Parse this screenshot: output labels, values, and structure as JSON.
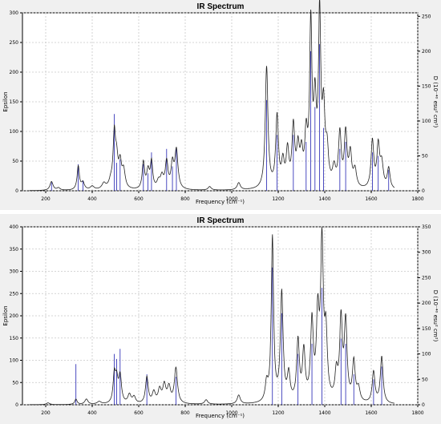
{
  "chart_data": [
    {
      "type": "line",
      "title": "IR Spectrum",
      "xlabel": "Frequency (cm⁻¹)",
      "ylabel": "Epsilon",
      "y2label": "D (10⁻⁴⁰ esu² cm²)",
      "xlim": [
        100,
        1800
      ],
      "ylim": [
        0,
        300
      ],
      "y2lim": [
        0,
        255
      ],
      "x_ticks": [
        200,
        400,
        600,
        800,
        1000,
        1200,
        1400,
        1600,
        1800
      ],
      "y_ticks": [
        0,
        50,
        100,
        150,
        200,
        250,
        300
      ],
      "y2_ticks": [
        0,
        50,
        100,
        150,
        200,
        250
      ],
      "grid": true,
      "colors": {
        "spectrum": "#222222",
        "sticks": "#2020b0",
        "grid": "#c8c8c8"
      },
      "peaks": [
        [
          225,
          15,
          8
        ],
        [
          255,
          4,
          8
        ],
        [
          340,
          40,
          6
        ],
        [
          360,
          12,
          8
        ],
        [
          400,
          6,
          10
        ],
        [
          450,
          10,
          10
        ],
        [
          480,
          12,
          10
        ],
        [
          495,
          87,
          6
        ],
        [
          505,
          45,
          7
        ],
        [
          520,
          40,
          7
        ],
        [
          535,
          30,
          8
        ],
        [
          620,
          45,
          6
        ],
        [
          640,
          30,
          7
        ],
        [
          655,
          45,
          6
        ],
        [
          685,
          12,
          8
        ],
        [
          700,
          20,
          8
        ],
        [
          720,
          45,
          7
        ],
        [
          745,
          40,
          7
        ],
        [
          762,
          65,
          8
        ],
        [
          905,
          6,
          8
        ],
        [
          1030,
          12,
          8
        ],
        [
          1150,
          205,
          7
        ],
        [
          1195,
          120,
          7
        ],
        [
          1220,
          40,
          7
        ],
        [
          1240,
          60,
          7
        ],
        [
          1265,
          100,
          7
        ],
        [
          1285,
          60,
          7
        ],
        [
          1300,
          50,
          7
        ],
        [
          1320,
          80,
          7
        ],
        [
          1340,
          265,
          6
        ],
        [
          1358,
          130,
          7
        ],
        [
          1378,
          280,
          6
        ],
        [
          1395,
          120,
          7
        ],
        [
          1410,
          55,
          7
        ],
        [
          1440,
          30,
          8
        ],
        [
          1465,
          90,
          7
        ],
        [
          1490,
          90,
          7
        ],
        [
          1510,
          55,
          7
        ],
        [
          1530,
          30,
          8
        ],
        [
          1605,
          80,
          7
        ],
        [
          1630,
          70,
          7
        ],
        [
          1645,
          40,
          8
        ],
        [
          1675,
          35,
          7
        ]
      ],
      "sticks": [
        [
          225,
          12
        ],
        [
          340,
          38
        ],
        [
          360,
          15
        ],
        [
          495,
          110
        ],
        [
          505,
          40
        ],
        [
          520,
          45
        ],
        [
          620,
          38
        ],
        [
          640,
          25
        ],
        [
          655,
          55
        ],
        [
          720,
          60
        ],
        [
          745,
          35
        ],
        [
          762,
          60
        ],
        [
          1150,
          130
        ],
        [
          1195,
          80
        ],
        [
          1265,
          80
        ],
        [
          1320,
          70
        ],
        [
          1340,
          200
        ],
        [
          1358,
          120
        ],
        [
          1378,
          210
        ],
        [
          1395,
          90
        ],
        [
          1465,
          60
        ],
        [
          1490,
          70
        ],
        [
          1605,
          55
        ],
        [
          1630,
          50
        ],
        [
          1675,
          30
        ]
      ]
    },
    {
      "type": "line",
      "title": "IR Spectrum",
      "xlabel": "Frequency (cm⁻¹)",
      "ylabel": "Epsilon",
      "y2label": "D (10⁻⁴⁰ esu² cm²)",
      "xlim": [
        100,
        1800
      ],
      "ylim": [
        0,
        400
      ],
      "y2lim": [
        0,
        350
      ],
      "x_ticks": [
        200,
        400,
        600,
        800,
        1000,
        1200,
        1400,
        1600,
        1800
      ],
      "y_ticks": [
        0,
        50,
        100,
        150,
        200,
        250,
        300,
        350,
        400
      ],
      "y2_ticks": [
        0,
        50,
        100,
        150,
        200,
        250,
        300,
        350
      ],
      "grid": true,
      "colors": {
        "spectrum": "#222222",
        "sticks": "#2020b0",
        "grid": "#c8c8c8"
      },
      "peaks": [
        [
          210,
          4,
          8
        ],
        [
          330,
          12,
          6
        ],
        [
          375,
          12,
          8
        ],
        [
          430,
          6,
          10
        ],
        [
          495,
          60,
          6
        ],
        [
          505,
          50,
          7
        ],
        [
          520,
          60,
          7
        ],
        [
          560,
          20,
          8
        ],
        [
          580,
          15,
          8
        ],
        [
          635,
          60,
          7
        ],
        [
          665,
          25,
          8
        ],
        [
          690,
          30,
          8
        ],
        [
          710,
          40,
          8
        ],
        [
          730,
          35,
          8
        ],
        [
          760,
          80,
          8
        ],
        [
          890,
          10,
          8
        ],
        [
          1030,
          20,
          8
        ],
        [
          1150,
          40,
          7
        ],
        [
          1175,
          370,
          6
        ],
        [
          1215,
          245,
          7
        ],
        [
          1245,
          60,
          7
        ],
        [
          1285,
          135,
          7
        ],
        [
          1310,
          110,
          7
        ],
        [
          1345,
          175,
          7
        ],
        [
          1370,
          180,
          7
        ],
        [
          1388,
          345,
          7
        ],
        [
          1405,
          140,
          7
        ],
        [
          1450,
          60,
          7
        ],
        [
          1470,
          180,
          7
        ],
        [
          1490,
          175,
          7
        ],
        [
          1525,
          90,
          7
        ],
        [
          1545,
          30,
          8
        ],
        [
          1610,
          70,
          7
        ],
        [
          1645,
          105,
          7
        ]
      ],
      "sticks": [
        [
          330,
          80
        ],
        [
          495,
          100
        ],
        [
          505,
          90
        ],
        [
          520,
          110
        ],
        [
          635,
          60
        ],
        [
          760,
          55
        ],
        [
          1175,
          270
        ],
        [
          1215,
          180
        ],
        [
          1285,
          100
        ],
        [
          1345,
          120
        ],
        [
          1388,
          230
        ],
        [
          1470,
          130
        ],
        [
          1490,
          120
        ],
        [
          1525,
          60
        ],
        [
          1610,
          50
        ],
        [
          1645,
          75
        ]
      ]
    }
  ]
}
